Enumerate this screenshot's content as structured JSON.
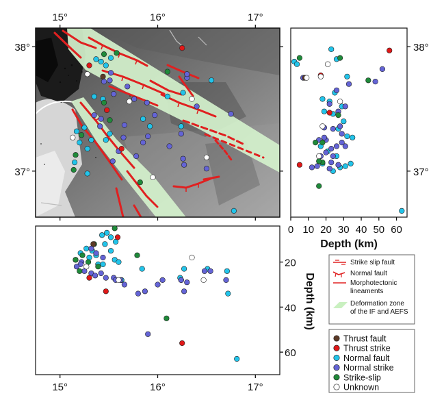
{
  "map": {
    "lon_ticks": [
      "15°",
      "16°",
      "17°"
    ],
    "lat_ticks": [
      "38°",
      "37°"
    ],
    "lon_range": [
      14.75,
      17.25
    ],
    "lat_range": [
      36.63,
      38.15
    ]
  },
  "side_panel": {
    "xlabel": "Depth (km)",
    "x_ticks": [
      "0",
      "10",
      "20",
      "30",
      "40",
      "50",
      "60"
    ],
    "x_range": [
      0,
      66
    ],
    "lat_ticks": [
      "38°",
      "37°"
    ]
  },
  "bottom_panel": {
    "ylabel": "Depth (km)",
    "y_ticks": [
      "20",
      "40",
      "60"
    ],
    "y_range": [
      4,
      70
    ],
    "lon_ticks": [
      "15°",
      "16°",
      "17°"
    ]
  },
  "legend_lines": [
    {
      "label": "Strike slip fault",
      "symbol": "strike-slip"
    },
    {
      "label": "Normal fault",
      "symbol": "normal"
    },
    {
      "label": "Morphotectonic lineaments",
      "lines": [
        "Morphotectonic",
        "lineaments"
      ],
      "symbol": "lineament"
    },
    {
      "label": "Deformation zone of the IF and AEFS",
      "lines": [
        "Deformation zone",
        "of the IF and AEFS"
      ],
      "symbol": "zone"
    }
  ],
  "legend_events": [
    {
      "label": "Thrust fault",
      "color": "#5c3a27"
    },
    {
      "label": "Thrust strike",
      "color": "#e01818"
    },
    {
      "label": "Normal fault",
      "color": "#22c4ea"
    },
    {
      "label": "Normal strike",
      "color": "#6464d6"
    },
    {
      "label": "Strike-slip",
      "color": "#1f8a3a"
    },
    {
      "label": "Unknown",
      "color": "#ffffff"
    }
  ],
  "chart_data": [
    {
      "type": "scatter",
      "panel": "map",
      "xlabel": "",
      "ylabel": "",
      "xlim": [
        14.75,
        17.25
      ],
      "ylim": [
        36.63,
        38.15
      ],
      "series": [
        {
          "color": "#22c4ea",
          "x": [
            15.37,
            15.42,
            15.47,
            15.52,
            15.25,
            15.44,
            15.32,
            15.28,
            15.2,
            15.15,
            15.28,
            15.35,
            15.47,
            15.51,
            15.85,
            16.1,
            16.55,
            16.78,
            15.92,
            16.24,
            16.26,
            15.17
          ],
          "y": [
            37.9,
            37.88,
            37.85,
            37.91,
            37.35,
            37.58,
            37.25,
            37.18,
            37.23,
            37.07,
            36.98,
            37.6,
            37.25,
            37.3,
            37.42,
            37.6,
            37.73,
            36.68,
            37.36,
            37.36,
            37.63,
            37.32
          ]
        },
        {
          "color": "#6464d6",
          "x": [
            15.51,
            15.69,
            15.76,
            15.89,
            15.97,
            16.12,
            16.24,
            16.26,
            16.27,
            15.78,
            15.35,
            15.42,
            15.45,
            15.41,
            15.55,
            15.54,
            15.6,
            15.66,
            15.85,
            15.9,
            16.5,
            16.75,
            16.4,
            16.3,
            16.3,
            15.65,
            15.52
          ],
          "y": [
            37.73,
            37.68,
            37.58,
            37.55,
            37.45,
            37.2,
            37.3,
            37.1,
            37.05,
            37.12,
            37.45,
            37.42,
            37.72,
            37.36,
            37.62,
            37.08,
            37.16,
            37.37,
            37.23,
            37.28,
            37.02,
            37.46,
            37.52,
            37.75,
            37.78,
            37.27,
            37.79
          ]
        },
        {
          "color": "#e01818",
          "x": [
            15.3,
            15.63,
            16.25,
            15.48
          ],
          "y": [
            37.85,
            37.18,
            37.99,
            37.49
          ]
        },
        {
          "color": "#1f8a3a",
          "x": [
            15.45,
            15.58,
            15.45,
            15.51,
            16.1,
            15.82,
            15.16,
            15.22,
            15.14
          ],
          "y": [
            37.94,
            37.95,
            37.55,
            37.41,
            37.8,
            36.91,
            37.13,
            37.29,
            37.01
          ]
        },
        {
          "color": "#5c3a27",
          "x": [
            15.44
          ],
          "y": [
            37.76
          ]
        },
        {
          "color": "#ffffff",
          "x": [
            15.28,
            15.13,
            15.71,
            16.35,
            16.5,
            15.95
          ],
          "y": [
            37.78,
            37.27,
            37.56,
            37.58,
            37.11,
            36.95
          ]
        }
      ]
    },
    {
      "type": "scatter",
      "panel": "depth-latitude",
      "xlabel": "Depth (km)",
      "ylabel": "",
      "xlim": [
        0,
        66
      ],
      "ylim": [
        36.63,
        38.15
      ],
      "series": [
        {
          "color": "#22c4ea",
          "x": [
            2,
            3.5,
            23,
            26,
            32,
            25,
            18,
            22,
            29,
            19,
            24,
            30,
            27,
            32,
            17,
            21,
            26,
            34,
            28,
            31,
            35,
            18,
            24,
            63
          ],
          "y": [
            37.88,
            37.86,
            37.98,
            37.9,
            37.76,
            37.63,
            37.58,
            37.56,
            37.52,
            37.48,
            37.46,
            37.4,
            37.34,
            37.28,
            37.2,
            37.16,
            37.12,
            37.06,
            37.03,
            37.04,
            37.27,
            37.06,
            37.0,
            36.68
          ]
        },
        {
          "color": "#6464d6",
          "x": [
            7,
            26,
            33,
            22,
            48,
            52,
            31,
            27,
            19,
            24,
            28,
            16,
            20,
            29,
            26,
            17,
            24,
            31,
            12,
            15,
            20,
            22,
            23,
            29,
            23,
            27,
            19
          ],
          "y": [
            37.75,
            37.65,
            37.7,
            37.54,
            37.72,
            37.82,
            37.52,
            37.48,
            37.35,
            37.34,
            37.36,
            37.25,
            37.25,
            37.23,
            37.2,
            37.12,
            37.12,
            37.2,
            37.03,
            37.04,
            37.15,
            37.02,
            37.18,
            37.3,
            37.07,
            37.05,
            37.27
          ]
        },
        {
          "color": "#e01818",
          "x": [
            17,
            56,
            22,
            5
          ],
          "y": [
            37.77,
            37.97,
            37.47,
            37.05
          ]
        },
        {
          "color": "#1f8a3a",
          "x": [
            5,
            28,
            44,
            16,
            14,
            27,
            18,
            16,
            18
          ],
          "y": [
            37.91,
            37.91,
            37.73,
            36.88,
            37.23,
            37.45,
            37.07,
            37.08,
            37.23
          ]
        },
        {
          "color": "#5c3a27",
          "x": [
            8
          ],
          "y": [
            37.75
          ]
        },
        {
          "color": "#ffffff",
          "x": [
            21,
            9,
            17,
            18,
            28,
            16
          ],
          "y": [
            37.86,
            37.75,
            37.76,
            37.36,
            37.56,
            37.12
          ]
        }
      ]
    },
    {
      "type": "scatter",
      "panel": "longitude-depth",
      "xlabel": "",
      "ylabel": "Depth (km)",
      "xlim": [
        14.75,
        17.25
      ],
      "ylim": [
        70,
        4
      ],
      "series": [
        {
          "color": "#22c4ea",
          "x": [
            15.48,
            15.43,
            15.52,
            15.57,
            15.52,
            15.46,
            15.33,
            15.27,
            15.21,
            15.16,
            15.3,
            15.37,
            15.39,
            15.44,
            15.56,
            15.6,
            15.63,
            15.84,
            16.27,
            16.23,
            16.51,
            16.71,
            16.72,
            16.81
          ],
          "y": [
            7,
            8,
            9,
            11,
            15,
            12,
            15,
            14,
            16,
            19,
            18,
            17,
            21,
            21,
            19,
            20,
            28,
            23,
            23,
            27,
            23,
            24,
            34,
            63
          ]
        },
        {
          "color": "#6464d6",
          "x": [
            15.32,
            15.37,
            15.44,
            15.22,
            15.21,
            15.17,
            15.25,
            15.32,
            15.36,
            15.42,
            15.47,
            15.62,
            15.55,
            15.57,
            15.66,
            15.8,
            15.87,
            16.0,
            16.05,
            16.24,
            16.27,
            16.3,
            16.48,
            16.54,
            16.7,
            15.9,
            16.24
          ],
          "y": [
            14,
            16,
            18,
            20,
            21,
            22,
            24,
            25,
            26,
            25,
            27,
            28,
            27,
            28,
            30,
            34,
            33,
            30,
            28,
            28,
            33,
            29,
            24,
            24,
            28,
            52,
            28
          ]
        },
        {
          "color": "#e01818",
          "x": [
            15.59,
            15.3,
            15.47,
            16.25
          ],
          "y": [
            9,
            27,
            33,
            56
          ]
        },
        {
          "color": "#1f8a3a",
          "x": [
            15.56,
            15.35,
            15.29,
            15.23,
            15.16,
            15.2,
            15.79,
            15.39,
            16.09
          ],
          "y": [
            5,
            12,
            20,
            17,
            19,
            24,
            17,
            22,
            45
          ]
        },
        {
          "color": "#5c3a27",
          "x": [
            15.34
          ],
          "y": [
            12
          ]
        },
        {
          "color": "#ffffff",
          "x": [
            15.27,
            15.6,
            16.35,
            16.47
          ],
          "y": [
            22,
            28,
            18,
            28
          ]
        }
      ]
    }
  ]
}
